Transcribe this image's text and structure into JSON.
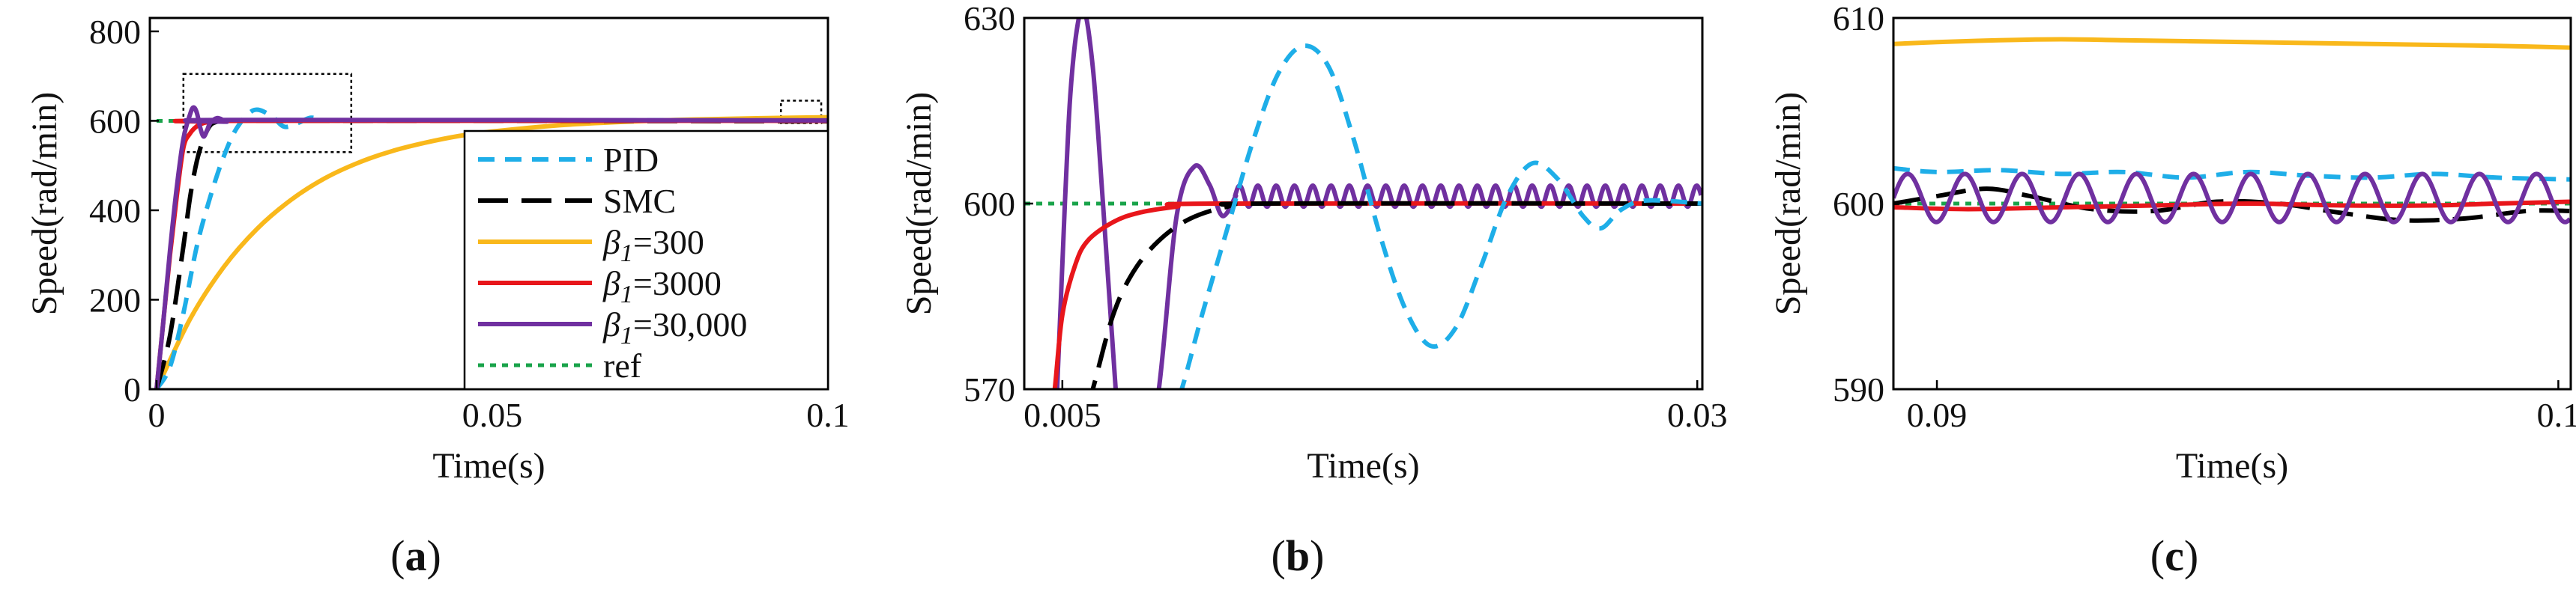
{
  "colors": {
    "PID": "#1EAEE8",
    "SMC": "#000000",
    "b300": "#F9B81B",
    "b3000": "#E8161B",
    "b30000": "#7030A0",
    "ref": "#19A34A"
  },
  "legend_items": [
    {
      "key": "PID",
      "label": "PID",
      "dash": "22 14"
    },
    {
      "key": "SMC",
      "label": "SMC",
      "dash": "40 18"
    },
    {
      "key": "b300",
      "label": "β1=300",
      "math": "β",
      "sub": "1",
      "rest": "=300",
      "dash": ""
    },
    {
      "key": "b3000",
      "label": "β1=3000",
      "math": "β",
      "sub": "1",
      "rest": "=3000",
      "dash": ""
    },
    {
      "key": "b30000",
      "label": "β1=30,000",
      "math": "β",
      "sub": "1",
      "rest": "=30,000",
      "dash": ""
    },
    {
      "key": "ref",
      "label": "ref",
      "dash": "8 8"
    }
  ],
  "chart_data": [
    {
      "id": "a",
      "type": "line",
      "panel_label": "(a)",
      "panel_letter": "a",
      "xlabel": "Time(s)",
      "ylabel": "Speed(rad/min)",
      "xlim": [
        -0.001,
        0.1
      ],
      "ylim": [
        0,
        830
      ],
      "xticks": [
        {
          "v": 0,
          "label": "0"
        },
        {
          "v": 0.05,
          "label": "0.05"
        },
        {
          "v": 0.1,
          "label": "0.1"
        }
      ],
      "yticks": [
        {
          "v": 0,
          "label": "0"
        },
        {
          "v": 200,
          "label": "200"
        },
        {
          "v": 400,
          "label": "400"
        },
        {
          "v": 600,
          "label": "600"
        },
        {
          "v": 800,
          "label": "800"
        }
      ],
      "zoom_boxes": [
        {
          "x0": 0.004,
          "x1": 0.029,
          "y0": 530,
          "y1": 705
        },
        {
          "x0": 0.093,
          "x1": 0.099,
          "y0": 595,
          "y1": 645
        }
      ],
      "series": [
        {
          "key": "ref",
          "points": [
            [
              0,
              600
            ],
            [
              0.1,
              600
            ]
          ]
        },
        {
          "key": "b300",
          "points": [
            [
              0,
              0
            ],
            [
              0.005,
              157
            ],
            [
              0.01,
              273
            ],
            [
              0.015,
              359
            ],
            [
              0.02,
              423
            ],
            [
              0.025,
              471
            ],
            [
              0.03,
              506
            ],
            [
              0.035,
              532
            ],
            [
              0.04,
              551
            ],
            [
              0.045,
              566
            ],
            [
              0.05,
              576
            ],
            [
              0.06,
              590
            ],
            [
              0.07,
              598
            ],
            [
              0.08,
              603
            ],
            [
              0.09,
              606
            ],
            [
              0.1,
              608
            ]
          ]
        },
        {
          "key": "PID",
          "points": [
            [
              0,
              0
            ],
            [
              0.002,
              50
            ],
            [
              0.004,
              170
            ],
            [
              0.006,
              320
            ],
            [
              0.008,
              430
            ],
            [
              0.01,
              520
            ],
            [
              0.012,
              585
            ],
            [
              0.0145,
              624
            ],
            [
              0.017,
              612
            ],
            [
              0.019,
              587
            ],
            [
              0.021,
              595
            ],
            [
              0.023,
              607
            ],
            [
              0.025,
              601
            ],
            [
              0.03,
              600
            ],
            [
              0.05,
              601
            ],
            [
              0.1,
              601
            ]
          ]
        },
        {
          "key": "SMC",
          "points": [
            [
              0,
              0
            ],
            [
              0.002,
              120
            ],
            [
              0.004,
              320
            ],
            [
              0.005,
              430
            ],
            [
              0.006,
              510
            ],
            [
              0.007,
              560
            ],
            [
              0.008,
              590
            ],
            [
              0.009,
              598
            ],
            [
              0.01,
              600
            ],
            [
              0.05,
              600
            ],
            [
              0.1,
              599
            ]
          ]
        },
        {
          "key": "b3000",
          "points": [
            [
              0,
              0
            ],
            [
              0.001,
              150
            ],
            [
              0.002,
              300
            ],
            [
              0.003,
              430
            ],
            [
              0.004,
              540
            ],
            [
              0.005,
              572
            ],
            [
              0.006,
              588
            ],
            [
              0.007,
              595
            ],
            [
              0.008,
              598
            ],
            [
              0.01,
              600
            ],
            [
              0.1,
              600
            ]
          ]
        },
        {
          "key": "b30000",
          "points": [
            [
              0,
              0
            ],
            [
              0.001,
              150
            ],
            [
              0.002,
              310
            ],
            [
              0.003,
              450
            ],
            [
              0.004,
              560
            ],
            [
              0.005,
              615
            ],
            [
              0.0055,
              630
            ],
            [
              0.006,
              618
            ],
            [
              0.0065,
              585
            ],
            [
              0.007,
              565
            ],
            [
              0.0075,
              578
            ],
            [
              0.008,
              595
            ],
            [
              0.009,
              606
            ],
            [
              0.01,
              601
            ],
            [
              0.0105,
              598
            ],
            [
              0.011,
              602
            ],
            [
              0.1,
              601
            ]
          ]
        }
      ]
    },
    {
      "id": "b",
      "type": "line",
      "panel_label": "(b)",
      "panel_letter": "b",
      "xlabel": "Time(s)",
      "ylabel": "Speed(rad/min)",
      "xlim": [
        0.0035,
        0.0302
      ],
      "ylim": [
        570,
        630
      ],
      "xticks": [
        {
          "v": 0.005,
          "label": "0.005"
        },
        {
          "v": 0.03,
          "label": "0.03"
        }
      ],
      "yticks": [
        {
          "v": 570,
          "label": "570"
        },
        {
          "v": 600,
          "label": "600"
        },
        {
          "v": 630,
          "label": "630"
        }
      ],
      "series": [
        {
          "key": "ref",
          "points": [
            [
              0.0035,
              600
            ],
            [
              0.0302,
              600
            ]
          ]
        },
        {
          "key": "b30000",
          "points": [
            [
              0.0045,
              540
            ],
            [
              0.0051,
              600
            ],
            [
              0.0054,
              622
            ],
            [
              0.0058,
              631.5
            ],
            [
              0.0062,
              622
            ],
            [
              0.0066,
              600
            ],
            [
              0.0071,
              570
            ],
            [
              0.0074,
              555
            ],
            [
              0.008,
              550
            ],
            [
              0.0088,
              570
            ],
            [
              0.0095,
              598
            ],
            [
              0.0102,
              606
            ],
            [
              0.0108,
              603
            ],
            [
              0.0113,
              598
            ],
            [
              0.0118,
              601
            ],
            "OSC"
          ]
        },
        {
          "key": "b3000",
          "points": [
            [
              0.0045,
              565
            ],
            [
              0.0047,
              570
            ],
            [
              0.005,
              582
            ],
            [
              0.0055,
              590
            ],
            [
              0.006,
              594
            ],
            [
              0.007,
              597
            ],
            [
              0.008,
              598.5
            ],
            [
              0.0095,
              599.5
            ],
            [
              0.011,
              600
            ],
            [
              0.0302,
              600
            ]
          ]
        },
        {
          "key": "SMC",
          "points": [
            [
              0.0055,
              560
            ],
            [
              0.0062,
              570
            ],
            [
              0.007,
              582
            ],
            [
              0.0078,
              589
            ],
            [
              0.0088,
              594
            ],
            [
              0.01,
              597.5
            ],
            [
              0.0115,
              599.5
            ],
            [
              0.013,
              600
            ],
            [
              0.0302,
              600
            ]
          ]
        },
        {
          "key": "PID",
          "points": [
            [
              0.0092,
              565
            ],
            [
              0.0097,
              570
            ],
            [
              0.0105,
              582
            ],
            [
              0.0115,
              596
            ],
            [
              0.0125,
              610
            ],
            [
              0.0135,
              621
            ],
            [
              0.0145,
              625.5
            ],
            [
              0.0155,
              622
            ],
            [
              0.0165,
              610
            ],
            [
              0.0175,
              595
            ],
            [
              0.0185,
              583
            ],
            [
              0.0195,
              577
            ],
            [
              0.0205,
              580
            ],
            [
              0.0215,
              590
            ],
            [
              0.0225,
              601
            ],
            [
              0.0235,
              606.5
            ],
            [
              0.0245,
              604
            ],
            [
              0.0255,
              598
            ],
            [
              0.0262,
              596
            ],
            [
              0.027,
              599
            ],
            [
              0.028,
              600.5
            ],
            [
              0.0302,
              600
            ]
          ]
        }
      ]
    },
    {
      "id": "c",
      "type": "line",
      "panel_label": "(c)",
      "panel_letter": "c",
      "xlabel": "Time(s)",
      "ylabel": "Speed(rad/min)",
      "xlim": [
        0.0893,
        0.1002
      ],
      "ylim": [
        590,
        610
      ],
      "xticks": [
        {
          "v": 0.09,
          "label": "0.09"
        },
        {
          "v": 0.1,
          "label": "0.1"
        }
      ],
      "yticks": [
        {
          "v": 590,
          "label": "590"
        },
        {
          "v": 600,
          "label": "600"
        },
        {
          "v": 610,
          "label": "610"
        }
      ],
      "series": [
        {
          "key": "ref",
          "points": [
            [
              0.0893,
              600
            ],
            [
              0.1002,
              600
            ]
          ]
        },
        {
          "key": "b300",
          "points": [
            [
              0.0893,
              608.6
            ],
            [
              0.09,
              608.7
            ],
            [
              0.091,
              608.8
            ],
            [
              0.092,
              608.85
            ],
            [
              0.093,
              608.8
            ],
            [
              0.094,
              608.75
            ],
            [
              0.095,
              608.7
            ],
            [
              0.096,
              608.65
            ],
            [
              0.097,
              608.6
            ],
            [
              0.098,
              608.55
            ],
            [
              0.099,
              608.5
            ],
            [
              0.1002,
              608.4
            ]
          ]
        },
        {
          "key": "PID",
          "points": [
            [
              0.0893,
              601.9
            ],
            [
              0.09,
              601.7
            ],
            [
              0.091,
              601.8
            ],
            [
              0.092,
              601.6
            ],
            [
              0.093,
              601.7
            ],
            [
              0.094,
              601.4
            ],
            [
              0.095,
              601.7
            ],
            [
              0.096,
              601.5
            ],
            [
              0.097,
              601.4
            ],
            [
              0.098,
              601.6
            ],
            [
              0.099,
              601.4
            ],
            [
              0.1002,
              601.3
            ]
          ]
        },
        {
          "key": "SMC",
          "points": [
            [
              0.0893,
              600.0
            ],
            [
              0.09,
              600.4
            ],
            [
              0.0908,
              600.8
            ],
            [
              0.0915,
              600.4
            ],
            [
              0.0925,
              599.7
            ],
            [
              0.0935,
              599.6
            ],
            [
              0.0945,
              600.1
            ],
            [
              0.0955,
              600.0
            ],
            [
              0.0965,
              599.5
            ],
            [
              0.0975,
              599.1
            ],
            [
              0.0985,
              599.2
            ],
            [
              0.0995,
              599.6
            ],
            [
              0.1002,
              599.6
            ]
          ]
        },
        {
          "key": "b3000",
          "points": [
            [
              0.0893,
              599.8
            ],
            [
              0.0905,
              599.7
            ],
            [
              0.092,
              599.8
            ],
            [
              0.0935,
              599.9
            ],
            [
              0.095,
              600.0
            ],
            [
              0.0965,
              599.9
            ],
            [
              0.098,
              599.9
            ],
            [
              0.099,
              600.0
            ],
            [
              0.1002,
              600.1
            ]
          ]
        },
        {
          "key": "b30000",
          "points": [
            "SINE",
            600.3,
            1.3,
            0.00092,
            0.0893,
            0.1002
          ]
        }
      ]
    }
  ]
}
